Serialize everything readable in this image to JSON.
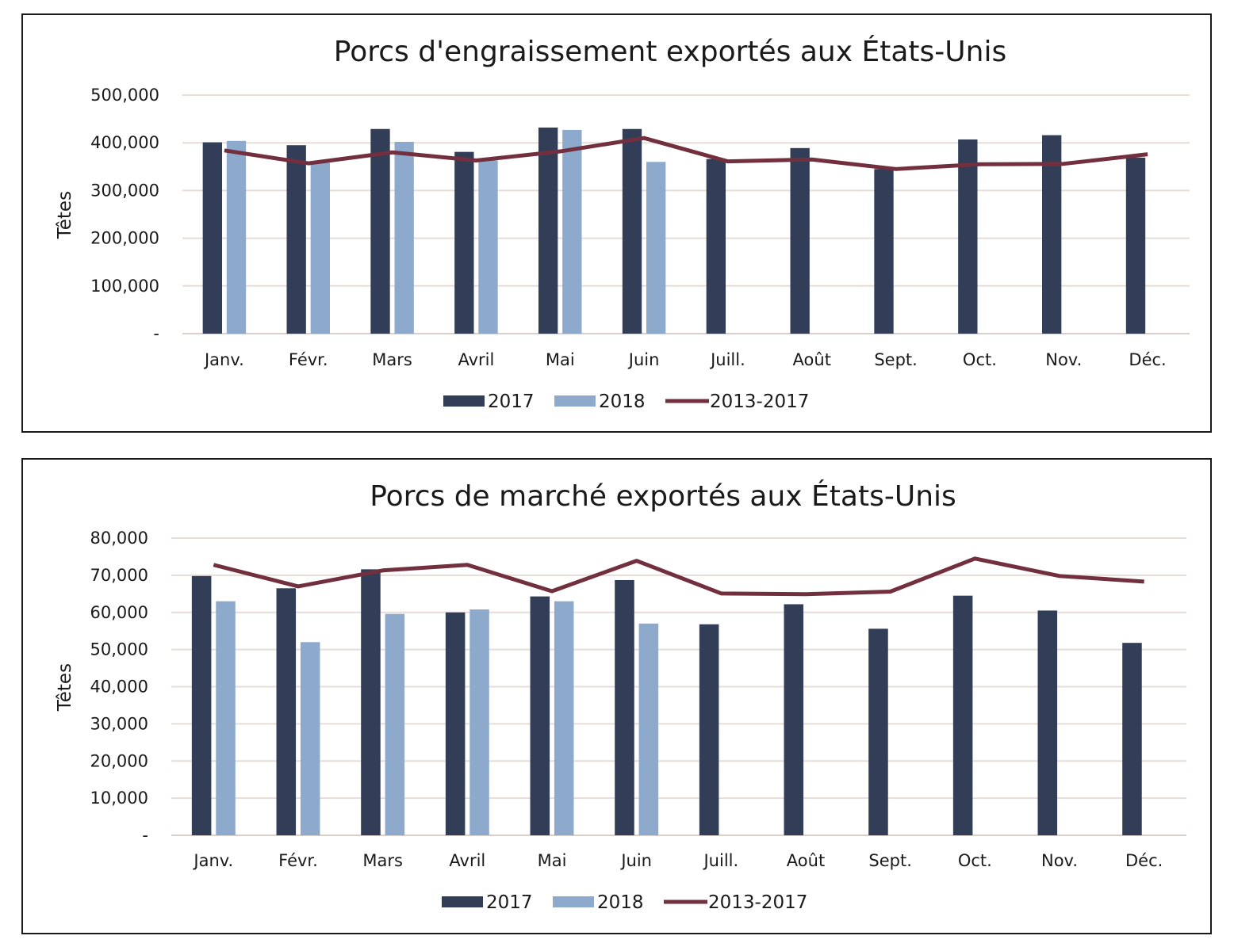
{
  "colors": {
    "s2017": "#323e58",
    "s2018": "#8daacd",
    "avg": "#722f3e",
    "grid": "#e6ddd8"
  },
  "chart_data": [
    {
      "type": "bar",
      "title": "Porcs d'engraissement exportés aux États-Unis",
      "ylabel": "Têtes",
      "ylim": [
        0,
        500000
      ],
      "yticks": [
        "-",
        "100,000",
        "200,000",
        "300,000",
        "400,000",
        "500,000"
      ],
      "categories": [
        "Janv.",
        "Févr.",
        "Mars",
        "Avril",
        "Mai",
        "Juin",
        "Juill.",
        "Août",
        "Sept.",
        "Oct.",
        "Nov.",
        "Déc."
      ],
      "series": [
        {
          "name": "2017",
          "type": "bar",
          "values": [
            401000,
            395000,
            429000,
            381000,
            432000,
            429000,
            366000,
            389000,
            345000,
            407000,
            416000,
            369000
          ]
        },
        {
          "name": "2018",
          "type": "bar",
          "values": [
            404000,
            358000,
            402000,
            363000,
            427000,
            360000,
            null,
            null,
            null,
            null,
            null,
            null
          ]
        },
        {
          "name": "2013-2017",
          "type": "line",
          "values": [
            384000,
            357000,
            380000,
            363000,
            382000,
            410000,
            361000,
            365000,
            345000,
            355000,
            356000,
            376000
          ]
        }
      ],
      "grid": true,
      "legend": "bottom"
    },
    {
      "type": "bar",
      "title": "Porcs de marché exportés aux États-Unis",
      "ylabel": "Têtes",
      "ylim": [
        0,
        80000
      ],
      "yticks": [
        "-",
        "10,000",
        "20,000",
        "30,000",
        "40,000",
        "50,000",
        "60,000",
        "70,000",
        "80,000"
      ],
      "categories": [
        "Janv.",
        "Févr.",
        "Mars",
        "Avril",
        "Mai",
        "Juin",
        "Juill.",
        "Août",
        "Sept.",
        "Oct.",
        "Nov.",
        "Déc."
      ],
      "series": [
        {
          "name": "2017",
          "type": "bar",
          "values": [
            69800,
            66500,
            71600,
            60000,
            64300,
            68700,
            56800,
            62200,
            55600,
            64500,
            60500,
            51800
          ]
        },
        {
          "name": "2018",
          "type": "bar",
          "values": [
            63000,
            52000,
            59600,
            60800,
            63000,
            57000,
            null,
            null,
            null,
            null,
            null,
            null
          ]
        },
        {
          "name": "2013-2017",
          "type": "line",
          "values": [
            72800,
            67000,
            71300,
            72800,
            65700,
            73900,
            65100,
            64900,
            65600,
            74500,
            69800,
            68300
          ]
        }
      ],
      "grid": true,
      "legend": "bottom"
    }
  ]
}
